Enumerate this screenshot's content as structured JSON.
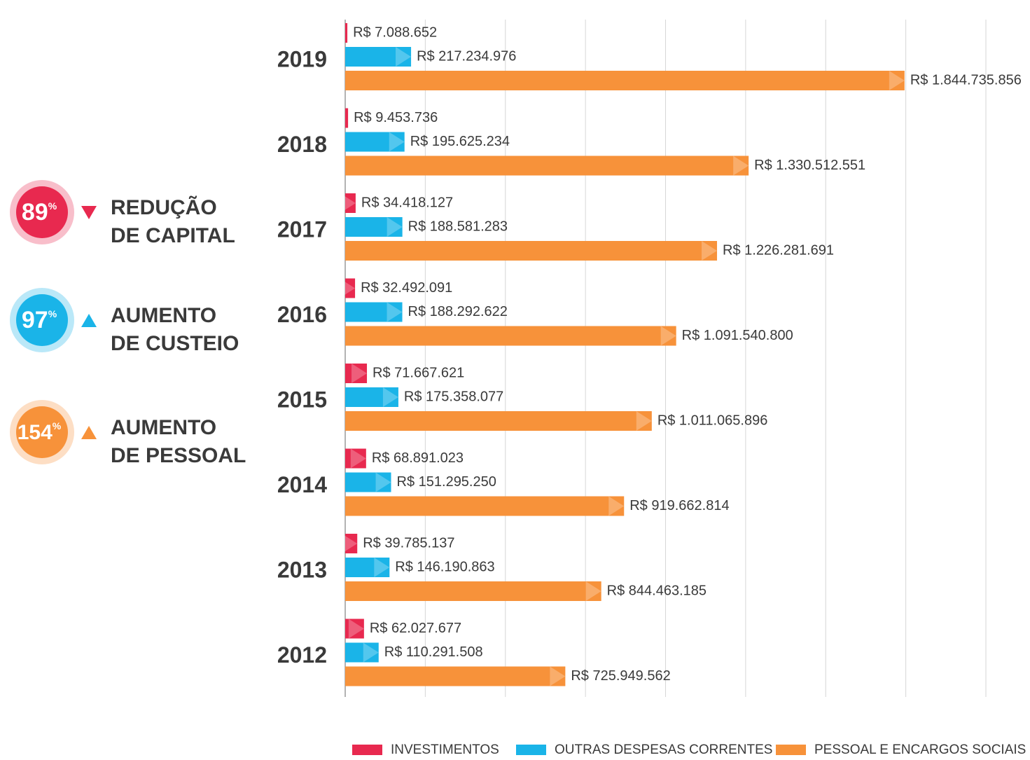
{
  "chart_data": {
    "type": "bar",
    "orientation": "horizontal",
    "categories": [
      "2019",
      "2018",
      "2017",
      "2016",
      "2015",
      "2014",
      "2013",
      "2012"
    ],
    "series": [
      {
        "name": "INVESTIMENTOS",
        "color": "#e8294f",
        "values": [
          7088652,
          9453736,
          34418127,
          32492091,
          71667621,
          68891023,
          39785137,
          62027677
        ],
        "value_labels": [
          "R$ 7.088.652",
          "R$ 9.453.736",
          "R$ 34.418.127",
          "R$ 32.492.091",
          "R$ 71.667.621",
          "R$ 68.891.023",
          "R$ 39.785.137",
          "R$ 62.027.677"
        ]
      },
      {
        "name": "OUTRAS DESPESAS CORRENTES",
        "color": "#1ab4e8",
        "values": [
          217234976,
          195625234,
          188581283,
          188292622,
          175358077,
          151295250,
          146190863,
          110291508
        ],
        "value_labels": [
          "R$ 217.234.976",
          "R$ 195.625.234",
          "R$ 188.581.283",
          "R$ 188.292.622",
          "R$ 175.358.077",
          "R$ 151.295.250",
          "R$ 146.190.863",
          "R$ 110.291.508"
        ]
      },
      {
        "name": "PESSOAL E ENCARGOS SOCIAIS",
        "color": "#f7923a",
        "values": [
          1844735856,
          1330512551,
          1226281691,
          1091540800,
          1011065896,
          919662814,
          844463185,
          725949562
        ],
        "value_labels": [
          "R$ 1.844.735.856",
          "R$ 1.330.512.551",
          "R$ 1.226.281.691",
          "R$ 1.091.540.800",
          "R$ 1.011.065.896",
          "R$ 919.662.814",
          "R$ 844.463.185",
          "R$ 725.949.562"
        ]
      }
    ],
    "xlim": [
      0,
      2113000000
    ],
    "grid": true,
    "legend": "bottom",
    "annotations": [
      {
        "value": "89",
        "unit": "%",
        "lines": [
          "REDUÇÃO",
          "DE CAPITAL"
        ],
        "direction": "down",
        "color": "#e8294f"
      },
      {
        "value": "97",
        "unit": "%",
        "lines": [
          "AUMENTO",
          "DE CUSTEIO"
        ],
        "direction": "up",
        "color": "#1ab4e8"
      },
      {
        "value": "154",
        "unit": "%",
        "lines": [
          "AUMENTO",
          "DE PESSOAL"
        ],
        "direction": "up",
        "color": "#f7923a"
      }
    ]
  }
}
